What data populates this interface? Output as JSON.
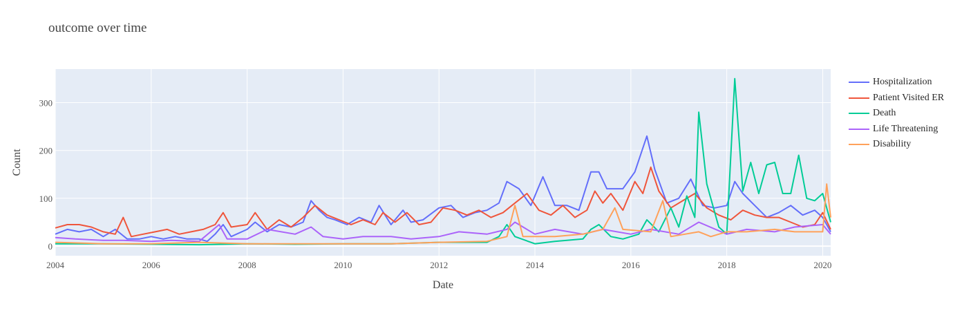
{
  "chart_data": {
    "type": "line",
    "title": "outcome over time",
    "xlabel": "Date",
    "ylabel": "Count",
    "x_range": [
      "2004-01-01",
      "2020-03-01"
    ],
    "ylim": [
      -20,
      370
    ],
    "x_ticks": [
      "2004",
      "2006",
      "2008",
      "2010",
      "2012",
      "2014",
      "2016",
      "2018",
      "2020"
    ],
    "y_ticks": [
      0,
      100,
      200,
      300
    ],
    "grid": true,
    "legend_position": "right",
    "background": "#e5ecf6",
    "series": [
      {
        "name": "Hospitalization",
        "color": "#636efa",
        "points": [
          [
            "2004-01",
            25
          ],
          [
            "2004-04",
            35
          ],
          [
            "2004-07",
            30
          ],
          [
            "2004-10",
            35
          ],
          [
            "2005-01",
            20
          ],
          [
            "2005-04",
            35
          ],
          [
            "2005-07",
            15
          ],
          [
            "2005-10",
            15
          ],
          [
            "2006-01",
            20
          ],
          [
            "2006-04",
            15
          ],
          [
            "2006-07",
            20
          ],
          [
            "2006-10",
            15
          ],
          [
            "2007-01",
            15
          ],
          [
            "2007-03",
            10
          ],
          [
            "2007-05",
            25
          ],
          [
            "2007-07",
            45
          ],
          [
            "2007-09",
            20
          ],
          [
            "2008-01",
            35
          ],
          [
            "2008-03",
            50
          ],
          [
            "2008-06",
            30
          ],
          [
            "2008-09",
            45
          ],
          [
            "2008-12",
            40
          ],
          [
            "2009-03",
            50
          ],
          [
            "2009-05",
            95
          ],
          [
            "2009-07",
            75
          ],
          [
            "2009-09",
            60
          ],
          [
            "2009-11",
            55
          ],
          [
            "2010-02",
            45
          ],
          [
            "2010-05",
            60
          ],
          [
            "2010-08",
            50
          ],
          [
            "2010-10",
            85
          ],
          [
            "2011-01",
            45
          ],
          [
            "2011-04",
            75
          ],
          [
            "2011-06",
            50
          ],
          [
            "2011-09",
            55
          ],
          [
            "2012-01",
            80
          ],
          [
            "2012-04",
            85
          ],
          [
            "2012-07",
            60
          ],
          [
            "2012-10",
            70
          ],
          [
            "2013-01",
            75
          ],
          [
            "2013-04",
            90
          ],
          [
            "2013-06",
            135
          ],
          [
            "2013-09",
            120
          ],
          [
            "2013-12",
            85
          ],
          [
            "2014-03",
            145
          ],
          [
            "2014-06",
            85
          ],
          [
            "2014-09",
            85
          ],
          [
            "2014-12",
            75
          ],
          [
            "2015-03",
            155
          ],
          [
            "2015-05",
            155
          ],
          [
            "2015-07",
            120
          ],
          [
            "2015-09",
            120
          ],
          [
            "2015-11",
            120
          ],
          [
            "2016-02",
            155
          ],
          [
            "2016-05",
            230
          ],
          [
            "2016-07",
            160
          ],
          [
            "2016-10",
            90
          ],
          [
            "2017-01",
            100
          ],
          [
            "2017-04",
            140
          ],
          [
            "2017-07",
            85
          ],
          [
            "2017-10",
            80
          ],
          [
            "2018-01",
            85
          ],
          [
            "2018-03",
            135
          ],
          [
            "2018-05",
            110
          ],
          [
            "2018-08",
            85
          ],
          [
            "2018-11",
            60
          ],
          [
            "2019-02",
            70
          ],
          [
            "2019-05",
            85
          ],
          [
            "2019-08",
            65
          ],
          [
            "2019-11",
            75
          ],
          [
            "2020-01",
            60
          ],
          [
            "2020-03",
            30
          ]
        ]
      },
      {
        "name": "Patient Visited ER",
        "color": "#ef553b",
        "points": [
          [
            "2004-01",
            38
          ],
          [
            "2004-04",
            45
          ],
          [
            "2004-07",
            45
          ],
          [
            "2004-10",
            40
          ],
          [
            "2005-01",
            30
          ],
          [
            "2005-04",
            25
          ],
          [
            "2005-06",
            60
          ],
          [
            "2005-08",
            20
          ],
          [
            "2005-11",
            25
          ],
          [
            "2006-02",
            30
          ],
          [
            "2006-05",
            35
          ],
          [
            "2006-08",
            25
          ],
          [
            "2006-11",
            30
          ],
          [
            "2007-02",
            35
          ],
          [
            "2007-05",
            45
          ],
          [
            "2007-07",
            70
          ],
          [
            "2007-09",
            40
          ],
          [
            "2008-01",
            45
          ],
          [
            "2008-03",
            70
          ],
          [
            "2008-06",
            35
          ],
          [
            "2008-09",
            55
          ],
          [
            "2008-12",
            40
          ],
          [
            "2009-03",
            60
          ],
          [
            "2009-06",
            85
          ],
          [
            "2009-09",
            65
          ],
          [
            "2009-12",
            55
          ],
          [
            "2010-03",
            45
          ],
          [
            "2010-06",
            55
          ],
          [
            "2010-09",
            45
          ],
          [
            "2010-11",
            70
          ],
          [
            "2011-02",
            50
          ],
          [
            "2011-05",
            70
          ],
          [
            "2011-08",
            45
          ],
          [
            "2011-11",
            50
          ],
          [
            "2012-02",
            80
          ],
          [
            "2012-05",
            75
          ],
          [
            "2012-08",
            65
          ],
          [
            "2012-11",
            75
          ],
          [
            "2013-02",
            60
          ],
          [
            "2013-05",
            70
          ],
          [
            "2013-08",
            90
          ],
          [
            "2013-11",
            110
          ],
          [
            "2014-02",
            75
          ],
          [
            "2014-05",
            65
          ],
          [
            "2014-08",
            85
          ],
          [
            "2014-11",
            60
          ],
          [
            "2015-02",
            75
          ],
          [
            "2015-04",
            115
          ],
          [
            "2015-06",
            90
          ],
          [
            "2015-08",
            110
          ],
          [
            "2015-11",
            75
          ],
          [
            "2016-02",
            135
          ],
          [
            "2016-04",
            110
          ],
          [
            "2016-06",
            165
          ],
          [
            "2016-08",
            115
          ],
          [
            "2016-11",
            80
          ],
          [
            "2017-02",
            95
          ],
          [
            "2017-05",
            110
          ],
          [
            "2017-08",
            80
          ],
          [
            "2017-11",
            65
          ],
          [
            "2018-02",
            55
          ],
          [
            "2018-05",
            75
          ],
          [
            "2018-08",
            65
          ],
          [
            "2018-11",
            60
          ],
          [
            "2019-02",
            60
          ],
          [
            "2019-05",
            50
          ],
          [
            "2019-08",
            40
          ],
          [
            "2019-11",
            45
          ],
          [
            "2020-01",
            70
          ],
          [
            "2020-03",
            35
          ]
        ]
      },
      {
        "name": "Death",
        "color": "#00cc96",
        "points": [
          [
            "2004-01",
            5
          ],
          [
            "2005-01",
            5
          ],
          [
            "2006-01",
            4
          ],
          [
            "2007-01",
            3
          ],
          [
            "2008-01",
            5
          ],
          [
            "2009-01",
            4
          ],
          [
            "2010-01",
            5
          ],
          [
            "2011-01",
            5
          ],
          [
            "2012-01",
            8
          ],
          [
            "2013-01",
            8
          ],
          [
            "2013-04",
            20
          ],
          [
            "2013-06",
            45
          ],
          [
            "2013-08",
            20
          ],
          [
            "2014-01",
            5
          ],
          [
            "2014-06",
            10
          ],
          [
            "2015-01",
            15
          ],
          [
            "2015-03",
            35
          ],
          [
            "2015-05",
            45
          ],
          [
            "2015-08",
            20
          ],
          [
            "2015-11",
            15
          ],
          [
            "2016-03",
            25
          ],
          [
            "2016-05",
            55
          ],
          [
            "2016-08",
            30
          ],
          [
            "2016-11",
            80
          ],
          [
            "2017-01",
            40
          ],
          [
            "2017-03",
            105
          ],
          [
            "2017-05",
            60
          ],
          [
            "2017-06",
            280
          ],
          [
            "2017-08",
            130
          ],
          [
            "2017-11",
            40
          ],
          [
            "2018-01",
            25
          ],
          [
            "2018-03",
            350
          ],
          [
            "2018-05",
            115
          ],
          [
            "2018-07",
            175
          ],
          [
            "2018-09",
            110
          ],
          [
            "2018-11",
            170
          ],
          [
            "2019-01",
            175
          ],
          [
            "2019-03",
            110
          ],
          [
            "2019-05",
            110
          ],
          [
            "2019-07",
            190
          ],
          [
            "2019-09",
            100
          ],
          [
            "2019-11",
            95
          ],
          [
            "2020-01",
            110
          ],
          [
            "2020-03",
            50
          ]
        ]
      },
      {
        "name": "Life Threatening",
        "color": "#ab63fa",
        "points": [
          [
            "2004-01",
            18
          ],
          [
            "2004-06",
            15
          ],
          [
            "2005-01",
            12
          ],
          [
            "2005-06",
            12
          ],
          [
            "2006-01",
            10
          ],
          [
            "2006-06",
            12
          ],
          [
            "2007-01",
            10
          ],
          [
            "2007-06",
            45
          ],
          [
            "2007-08",
            15
          ],
          [
            "2008-01",
            15
          ],
          [
            "2008-06",
            35
          ],
          [
            "2009-01",
            25
          ],
          [
            "2009-05",
            40
          ],
          [
            "2009-08",
            20
          ],
          [
            "2010-01",
            15
          ],
          [
            "2010-06",
            20
          ],
          [
            "2011-01",
            20
          ],
          [
            "2011-06",
            15
          ],
          [
            "2012-01",
            20
          ],
          [
            "2012-06",
            30
          ],
          [
            "2013-01",
            25
          ],
          [
            "2013-06",
            35
          ],
          [
            "2013-08",
            50
          ],
          [
            "2014-01",
            25
          ],
          [
            "2014-06",
            35
          ],
          [
            "2015-01",
            25
          ],
          [
            "2015-06",
            35
          ],
          [
            "2016-01",
            25
          ],
          [
            "2016-06",
            35
          ],
          [
            "2017-01",
            25
          ],
          [
            "2017-06",
            50
          ],
          [
            "2018-01",
            25
          ],
          [
            "2018-06",
            35
          ],
          [
            "2019-01",
            30
          ],
          [
            "2019-06",
            40
          ],
          [
            "2020-01",
            45
          ],
          [
            "2020-03",
            25
          ]
        ]
      },
      {
        "name": "Disability",
        "color": "#ffa15a",
        "points": [
          [
            "2004-01",
            8
          ],
          [
            "2005-01",
            5
          ],
          [
            "2006-01",
            5
          ],
          [
            "2007-01",
            8
          ],
          [
            "2008-01",
            5
          ],
          [
            "2009-01",
            5
          ],
          [
            "2010-01",
            5
          ],
          [
            "2011-01",
            5
          ],
          [
            "2012-01",
            8
          ],
          [
            "2013-01",
            10
          ],
          [
            "2013-06",
            20
          ],
          [
            "2013-08",
            85
          ],
          [
            "2013-10",
            20
          ],
          [
            "2014-06",
            20
          ],
          [
            "2015-01",
            25
          ],
          [
            "2015-06",
            35
          ],
          [
            "2015-09",
            80
          ],
          [
            "2015-11",
            35
          ],
          [
            "2016-06",
            30
          ],
          [
            "2016-09",
            95
          ],
          [
            "2016-11",
            20
          ],
          [
            "2017-06",
            30
          ],
          [
            "2017-09",
            20
          ],
          [
            "2018-01",
            30
          ],
          [
            "2018-06",
            30
          ],
          [
            "2019-01",
            35
          ],
          [
            "2019-06",
            30
          ],
          [
            "2020-01",
            30
          ],
          [
            "2020-02",
            130
          ],
          [
            "2020-03",
            60
          ]
        ]
      }
    ]
  }
}
